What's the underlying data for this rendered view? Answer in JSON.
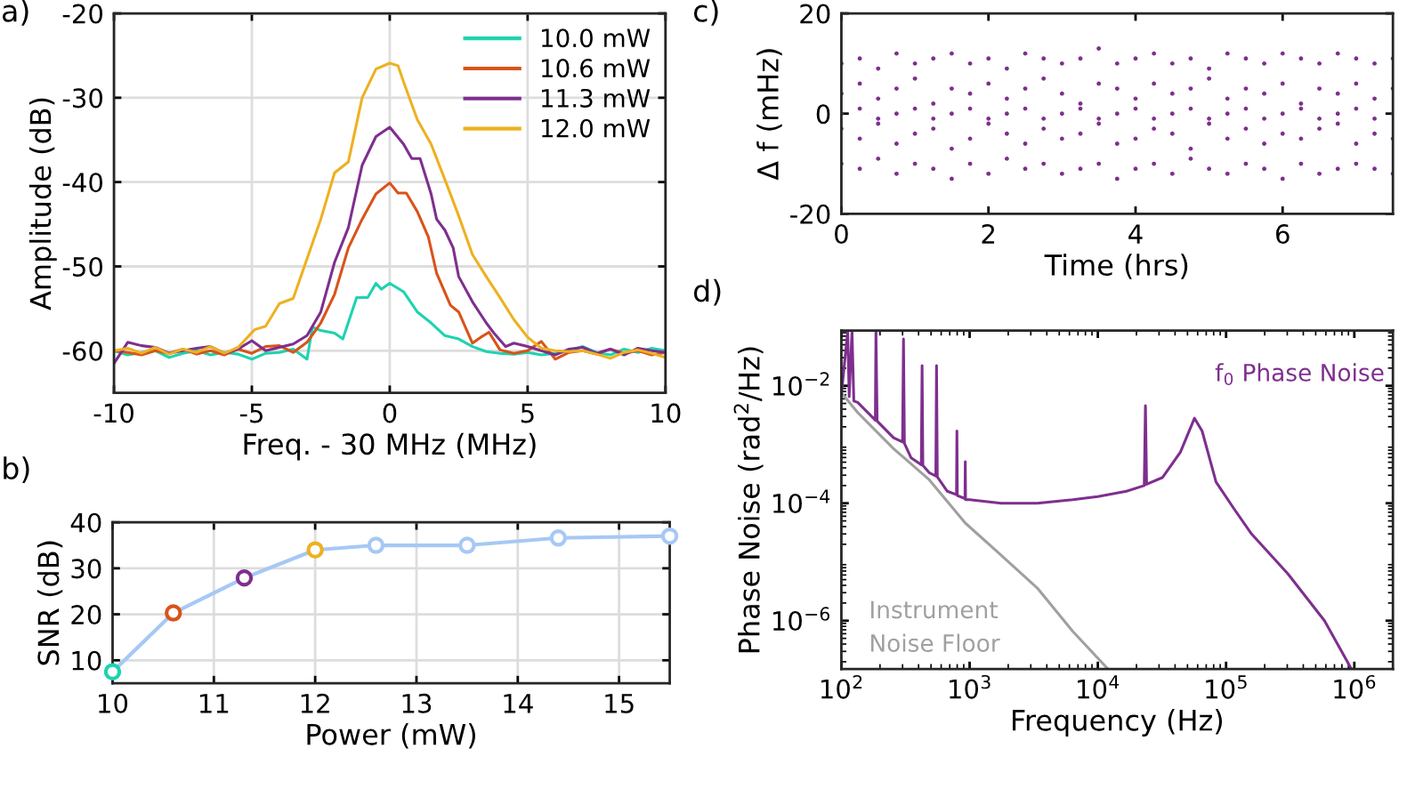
{
  "chart_data": [
    {
      "type": "line",
      "title": "a)",
      "xlabel": "Freq. - 30 MHz (MHz)",
      "ylabel": "Amplitude (dB)",
      "xlim": [
        -10,
        10
      ],
      "ylim": [
        -65,
        -20
      ],
      "xticks": [
        -10,
        -5,
        0,
        5,
        10
      ],
      "yticks": [
        -60,
        -50,
        -40,
        -30,
        -20
      ],
      "grid": true,
      "legend": "top right",
      "series": [
        {
          "name": "10.0 mW",
          "color": "#1dd3b0",
          "x": [
            -10,
            -9.5,
            -9,
            -8.5,
            -8,
            -7.5,
            -7,
            -6.5,
            -6,
            -5.5,
            -5,
            -4.5,
            -4,
            -3.5,
            -3,
            -2.8,
            -2.5,
            -2,
            -1.7,
            -1.2,
            -0.8,
            -0.5,
            -0.3,
            0,
            0.5,
            1,
            1.5,
            2,
            2.5,
            3,
            3.5,
            4,
            4.5,
            5,
            5.5,
            6,
            6.5,
            7,
            7.5,
            8,
            8.5,
            9,
            9.5,
            10
          ],
          "values": [
            -60,
            -60.5,
            -60.2,
            -60,
            -60.8,
            -60.3,
            -60,
            -60.5,
            -60.2,
            -60.4,
            -61,
            -60.3,
            -60.2,
            -59.8,
            -61,
            -57.2,
            -57.6,
            -57.9,
            -58.6,
            -53.7,
            -53.7,
            -52,
            -52.7,
            -52,
            -53,
            -55.4,
            -56.7,
            -58.2,
            -58.6,
            -59.5,
            -60.1,
            -60.3,
            -60.4,
            -60.2,
            -60.5,
            -60.3,
            -60,
            -59.5,
            -60.2,
            -60.5,
            -59.8,
            -60.2,
            -59.7,
            -60
          ]
        },
        {
          "name": "10.6 mW",
          "color": "#d95319",
          "x": [
            -10,
            -9.5,
            -9,
            -8.5,
            -8,
            -7.5,
            -7,
            -6.5,
            -6,
            -5.5,
            -5,
            -4.5,
            -4,
            -3.5,
            -3,
            -2.5,
            -2,
            -1.5,
            -1,
            -0.5,
            0,
            0.3,
            0.6,
            1,
            1.4,
            1.7,
            2.2,
            2.5,
            3,
            3.3,
            3.6,
            4,
            4.5,
            5,
            5.5,
            6,
            6.5,
            7,
            7.5,
            8,
            8.5,
            9,
            9.5,
            10
          ],
          "values": [
            -60,
            -60.2,
            -60.5,
            -60,
            -60.3,
            -59.8,
            -60.4,
            -60,
            -60.5,
            -59.8,
            -60.3,
            -59.5,
            -59.4,
            -60.2,
            -59,
            -56.7,
            -53.3,
            -47.8,
            -44.4,
            -41.4,
            -40.1,
            -41.3,
            -41.3,
            -43.5,
            -46.5,
            -50.8,
            -54.6,
            -55.4,
            -59.1,
            -58.4,
            -57.8,
            -59.9,
            -60.3,
            -60,
            -58.9,
            -61,
            -60.2,
            -60,
            -60.4,
            -59.8,
            -60.3,
            -60,
            -60.5,
            -60.2
          ]
        },
        {
          "name": "11.3 mW",
          "color": "#7e2f8e",
          "x": [
            -10,
            -9.5,
            -9,
            -8.5,
            -8,
            -7.5,
            -7,
            -6.5,
            -6,
            -5.5,
            -5,
            -4.5,
            -4,
            -3.5,
            -3,
            -2.5,
            -2,
            -1.5,
            -1,
            -0.5,
            0,
            0.5,
            0.8,
            1.1,
            1.5,
            1.7,
            2,
            2.3,
            2.5,
            3,
            3.5,
            3.8,
            4.2,
            4.5,
            5,
            5.5,
            6,
            6.5,
            7,
            7.5,
            8,
            8.5,
            9,
            9.5,
            10
          ],
          "values": [
            -61.5,
            -59,
            -59.4,
            -59.6,
            -60.3,
            -60,
            -59.7,
            -59.5,
            -60.3,
            -59.8,
            -58.8,
            -60,
            -59.6,
            -59.2,
            -58.2,
            -55.4,
            -49.5,
            -45.4,
            -38,
            -34.6,
            -33.5,
            -35.5,
            -37.2,
            -37.2,
            -41.4,
            -44.4,
            -45.7,
            -47.8,
            -51.2,
            -54.2,
            -56.7,
            -58,
            -59.5,
            -59.1,
            -59.5,
            -60,
            -60.5,
            -59.8,
            -59.6,
            -60.3,
            -59.8,
            -60.5,
            -59.7,
            -60,
            -60.2
          ]
        },
        {
          "name": "12.0 mW",
          "color": "#edb120",
          "x": [
            -10,
            -9.5,
            -9,
            -8.5,
            -8,
            -7.5,
            -7,
            -6.5,
            -6,
            -5.5,
            -4.9,
            -4.5,
            -4,
            -3.5,
            -3,
            -2.5,
            -2,
            -1.5,
            -1,
            -0.5,
            0,
            0.3,
            0.5,
            1,
            1.5,
            2,
            2.5,
            3,
            3.5,
            4,
            4.5,
            5,
            5.5,
            6,
            6.5,
            7,
            7.5,
            8,
            8.5,
            9,
            9.5,
            10
          ],
          "values": [
            -60,
            -59.7,
            -60.3,
            -59.6,
            -60.4,
            -59.8,
            -60.2,
            -59.5,
            -60.3,
            -59.6,
            -57.5,
            -57.1,
            -54.4,
            -53.8,
            -49.1,
            -44.4,
            -38.9,
            -37.6,
            -30,
            -26.6,
            -25.9,
            -26.2,
            -28.1,
            -32.6,
            -35.5,
            -39.7,
            -44,
            -48.6,
            -51.2,
            -53.7,
            -56.3,
            -58.4,
            -59.7,
            -60,
            -60.1,
            -60,
            -60.4,
            -60.9,
            -60.2,
            -59.9,
            -60.3,
            -60.8
          ]
        }
      ]
    },
    {
      "type": "line",
      "title": "b)",
      "xlabel": "Power (mW)",
      "ylabel": "SNR (dB)",
      "xlim": [
        10,
        15.5
      ],
      "ylim": [
        5,
        40
      ],
      "xticks": [
        10,
        11,
        12,
        13,
        14,
        15
      ],
      "yticks": [
        10,
        20,
        30,
        40
      ],
      "grid": true,
      "marker": "circle",
      "x": [
        10,
        10.6,
        11.3,
        12,
        12.6,
        13.5,
        14.4,
        15.5
      ],
      "series": [
        {
          "color": "#a6c8f5",
          "colors": [
            "#1dd3b0",
            "#d95319",
            "#7e2f8e",
            "#edb120",
            "#a6c8f5",
            "#a6c8f5",
            "#a6c8f5",
            "#a6c8f5"
          ],
          "values": [
            7.5,
            20.3,
            27.9,
            34,
            35,
            35,
            36.6,
            37
          ]
        }
      ]
    },
    {
      "type": "scatter",
      "title": "c)",
      "xlabel": "Time (hrs)",
      "ylabel": "Δ f (mHz)",
      "xlim": [
        0,
        7.5
      ],
      "ylim": [
        -20,
        20
      ],
      "xticks": [
        0,
        2,
        4,
        6
      ],
      "yticks": [
        -20,
        0,
        20
      ],
      "grid": false,
      "series": [
        {
          "color": "#7e2f8e",
          "x": [
            0,
            0.25,
            0.5,
            0.75,
            1,
            1.25,
            1.5,
            1.75,
            2,
            2.25,
            2.5,
            2.75,
            3,
            3.25,
            3.5,
            3.75,
            4,
            4.25,
            4.5,
            4.75,
            5,
            5.25,
            5.5,
            5.75,
            6,
            6.25,
            6.5,
            6.75,
            7,
            7.25,
            7.5,
            0,
            0.25,
            0.5,
            0.75,
            1,
            1.25,
            1.5,
            1.75,
            2,
            2.25,
            2.5,
            2.75,
            3,
            3.25,
            3.5,
            3.75,
            4,
            4.25,
            4.5,
            4.75,
            5,
            5.25,
            5.5,
            5.75,
            6,
            6.25,
            6.5,
            6.75,
            7,
            7.25,
            7.5,
            0,
            0.25,
            0.5,
            0.75,
            1,
            1.25,
            1.5,
            1.75,
            2,
            2.25,
            2.5,
            2.75,
            3,
            3.25,
            3.5,
            3.75,
            4,
            4.25,
            4.5,
            4.75,
            5,
            5.25,
            5.5,
            5.75,
            6,
            6.25,
            6.5,
            6.75,
            7,
            7.25,
            7.5,
            0,
            0.25,
            0.5,
            0.75,
            1,
            1.25,
            1.5,
            1.75,
            2,
            2.25,
            2.5,
            2.75,
            3,
            3.25,
            3.5,
            3.75,
            4,
            4.25,
            4.5,
            4.75,
            5,
            5.25,
            5.5,
            5.75,
            6,
            6.25,
            6.5,
            6.75,
            7,
            7.25,
            7.5,
            0,
            0.25,
            0.5,
            0.75,
            1,
            1.25,
            1.5,
            1.75,
            2,
            2.25,
            2.5,
            2.75,
            3,
            3.25,
            3.5,
            3.75,
            4,
            4.25,
            4.5,
            4.75,
            5,
            5.25,
            5.5,
            5.75,
            6,
            6.25,
            6.5,
            6.75,
            7,
            7.25,
            7.5
          ],
          "values": [
            10,
            11,
            9,
            12,
            10,
            11,
            12,
            10,
            11,
            9,
            12,
            11,
            10,
            11,
            13,
            10,
            11,
            12,
            10,
            11,
            9,
            12,
            11,
            10,
            12,
            11,
            10,
            12,
            11,
            10,
            11,
            4,
            6,
            3,
            5,
            7,
            2,
            5,
            4,
            6,
            3,
            5,
            7,
            4,
            2,
            6,
            5,
            3,
            6,
            4,
            5,
            7,
            3,
            5,
            4,
            6,
            2,
            5,
            4,
            6,
            3,
            5,
            0,
            1,
            -1,
            0,
            1,
            -1,
            0,
            1,
            -1,
            0,
            1,
            -1,
            0,
            1,
            -1,
            0,
            1,
            -1,
            0,
            1,
            -1,
            0,
            1,
            -1,
            0,
            1,
            -1,
            0,
            1,
            -1,
            0,
            -3,
            -5,
            -2,
            -6,
            -4,
            -3,
            -7,
            -5,
            -2,
            -4,
            -6,
            -3,
            -5,
            -4,
            -2,
            -6,
            -5,
            -3,
            -4,
            -7,
            -2,
            -5,
            -3,
            -6,
            -4,
            -5,
            -3,
            -2,
            -6,
            -4,
            -5,
            -10,
            -11,
            -9,
            -12,
            -10,
            -11,
            -13,
            -10,
            -12,
            -9,
            -11,
            -10,
            -12,
            -11,
            -10,
            -13,
            -11,
            -10,
            -12,
            -9,
            -11,
            -12,
            -10,
            -11,
            -13,
            -10,
            -12,
            -11,
            -10,
            -11,
            -12
          ]
        }
      ]
    },
    {
      "type": "line",
      "title": "d)",
      "xlabel": "Frequency (Hz)",
      "ylabel": "Phase Noise (rad$^{2}$/Hz)",
      "log": "xy",
      "xlim": [
        100,
        2000000
      ],
      "ylim": [
        1.5e-07,
        0.087
      ],
      "grid": false,
      "xticks": [
        {
          "value": 100,
          "label": "10$^{2}$"
        },
        {
          "value": 1000,
          "label": "10$^{3}$"
        },
        {
          "value": 10000,
          "label": "10$^{4}$"
        },
        {
          "value": 100000,
          "label": "10$^{5}$"
        },
        {
          "value": 1000000,
          "label": "10$^{6}$"
        }
      ],
      "yticks": [
        {
          "value": 1e-06,
          "label": "10$^{−6}$"
        },
        {
          "value": 0.0001,
          "label": "10$^{−4}$"
        },
        {
          "value": 0.01,
          "label": "10$^{−2}$"
        }
      ],
      "series": [
        {
          "name": "Instrument\nNoise Floor",
          "color": "#a0a0a0",
          "x": [
            100,
            134,
            255,
            485,
            925,
            1760,
            3370,
            6370,
            12000
          ],
          "values": [
            0.0076,
            0.0035,
            0.00085,
            0.00025,
            4.6e-05,
            1.3e-05,
            3.6e-06,
            6.6e-07,
            1.5e-07
          ]
        },
        {
          "name": "f$_{0}$ Phase Noise",
          "color": "#7e2f8e",
          "x": [
            100,
            112,
            115,
            121,
            125,
            134,
            184,
            186,
            190,
            255,
            300,
            305,
            310,
            350,
            420,
            426,
            432,
            485,
            545,
            552,
            560,
            670,
            790,
            796,
            802,
            920,
            925,
            930,
            1000,
            1760,
            3370,
            6370,
            10000,
            16700,
            23000,
            23500,
            24000,
            32000,
            44000,
            56700,
            65000,
            83500,
            115000,
            158000,
            303000,
            585000,
            950000
          ],
          "values": [
            0.0071,
            0.085,
            0.0065,
            0.085,
            0.0055,
            0.0052,
            0.0026,
            0.085,
            0.0025,
            0.0013,
            0.0011,
            0.063,
            0.00105,
            0.00059,
            0.00045,
            0.022,
            0.00044,
            0.00033,
            0.00029,
            0.022,
            0.00028,
            0.00016,
            0.00014,
            0.0017,
            0.000135,
            0.00012,
            0.00051,
            0.000115,
            0.000115,
            0.0001,
            0.0001,
            0.000115,
            0.00013,
            0.00016,
            0.0002,
            0.0046,
            0.00021,
            0.000275,
            0.00074,
            0.0028,
            0.0017,
            0.00023,
            8.1e-05,
            3e-05,
            6.3e-06,
            1e-06,
            1.5e-07
          ]
        }
      ]
    }
  ]
}
